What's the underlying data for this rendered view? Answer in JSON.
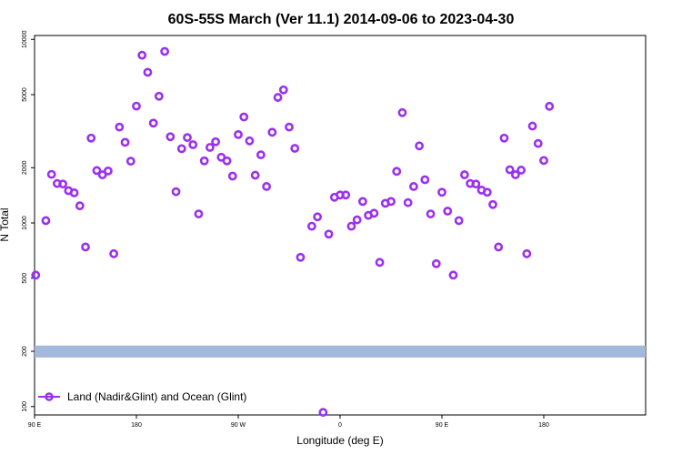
{
  "chart_data": {
    "type": "scatter",
    "title": "60S-55S March (Ver 11.1)   2014-09-06 to 2023-04-30",
    "xlabel": "Longitude (deg E)",
    "ylabel": "N Total",
    "x_scale": "linear",
    "y_scale": "log",
    "xlim": [
      -90,
      180
    ],
    "ylim": [
      90,
      10500
    ],
    "x_ticks": [
      {
        "value": -90,
        "label": "90 E"
      },
      {
        "value": -45,
        "label": "180"
      },
      {
        "value": 0,
        "label": "90 W"
      },
      {
        "value": 45,
        "label": "0"
      },
      {
        "value": 90,
        "label": "90 E"
      },
      {
        "value": 135,
        "label": "180"
      }
    ],
    "y_ticks": [
      {
        "value": 100,
        "label": "100"
      },
      {
        "value": 200,
        "label": "200"
      },
      {
        "value": 500,
        "label": "500"
      },
      {
        "value": 1000,
        "label": "1000"
      },
      {
        "value": 2000,
        "label": "2000"
      },
      {
        "value": 5000,
        "label": "5000"
      },
      {
        "value": 10000,
        "label": "10000"
      }
    ],
    "band": {
      "y_low": 185,
      "y_high": 215,
      "color": "#a3b9db"
    },
    "legend": {
      "position": "bottom-left",
      "label": "Land (Nadir&Glint) and Ocean (Glint)"
    },
    "grid": false,
    "series": [
      {
        "name": "Land (Nadir&Glint) and Ocean (Glint)",
        "color": "#9b30f0",
        "marker": "open-circle",
        "points": [
          [
            -89.5,
            520
          ],
          [
            -85,
            1030
          ],
          [
            -82.5,
            1840
          ],
          [
            -80,
            1640
          ],
          [
            -77.5,
            1630
          ],
          [
            -75,
            1500
          ],
          [
            -72.5,
            1460
          ],
          [
            -70,
            1240
          ],
          [
            -67.5,
            740
          ],
          [
            -65,
            2900
          ],
          [
            -62.5,
            1930
          ],
          [
            -60,
            1830
          ],
          [
            -57.5,
            1920
          ],
          [
            -55,
            680
          ],
          [
            -52.5,
            3330
          ],
          [
            -50,
            2750
          ],
          [
            -47.5,
            2170
          ],
          [
            -45,
            4330
          ],
          [
            -42.5,
            8200
          ],
          [
            -40,
            6620
          ],
          [
            -37.5,
            3500
          ],
          [
            -35,
            4900
          ],
          [
            -32.5,
            8600
          ],
          [
            -30,
            2950
          ],
          [
            -27.5,
            1480
          ],
          [
            -25,
            2540
          ],
          [
            -22.5,
            2920
          ],
          [
            -20,
            2670
          ],
          [
            -17.5,
            1120
          ],
          [
            -15,
            2180
          ],
          [
            -12.5,
            2580
          ],
          [
            -10,
            2770
          ],
          [
            -7.5,
            2280
          ],
          [
            -5,
            2180
          ],
          [
            -2.5,
            1800
          ],
          [
            0,
            3030
          ],
          [
            2.5,
            3780
          ],
          [
            5,
            2800
          ],
          [
            7.5,
            1820
          ],
          [
            10,
            2350
          ],
          [
            12.5,
            1580
          ],
          [
            15,
            3120
          ],
          [
            17.5,
            4830
          ],
          [
            20,
            5310
          ],
          [
            22.5,
            3330
          ],
          [
            25,
            2550
          ],
          [
            27.5,
            650
          ],
          [
            32.5,
            960
          ],
          [
            35,
            1080
          ],
          [
            37.5,
            93
          ],
          [
            40,
            870
          ],
          [
            42.5,
            1380
          ],
          [
            45,
            1420
          ],
          [
            47.5,
            1420
          ],
          [
            50,
            960
          ],
          [
            52.5,
            1040
          ],
          [
            55,
            1310
          ],
          [
            57.5,
            1100
          ],
          [
            60,
            1130
          ],
          [
            62.5,
            610
          ],
          [
            65,
            1280
          ],
          [
            67.5,
            1310
          ],
          [
            70,
            1910
          ],
          [
            72.5,
            3990
          ],
          [
            75,
            1290
          ],
          [
            77.5,
            1580
          ],
          [
            80,
            2630
          ],
          [
            82.5,
            1720
          ],
          [
            85,
            1120
          ],
          [
            87.5,
            600
          ],
          [
            90,
            1470
          ],
          [
            92.5,
            1160
          ],
          [
            95,
            520
          ],
          [
            97.5,
            1030
          ],
          [
            100,
            1830
          ],
          [
            102.5,
            1640
          ],
          [
            105,
            1630
          ],
          [
            107.5,
            1510
          ],
          [
            110,
            1470
          ],
          [
            112.5,
            1260
          ],
          [
            115,
            740
          ],
          [
            117.5,
            2900
          ],
          [
            120,
            1950
          ],
          [
            122.5,
            1830
          ],
          [
            125,
            1940
          ],
          [
            127.5,
            680
          ],
          [
            130,
            3370
          ],
          [
            132.5,
            2710
          ],
          [
            135,
            2190
          ],
          [
            137.5,
            4320
          ]
        ]
      }
    ]
  }
}
